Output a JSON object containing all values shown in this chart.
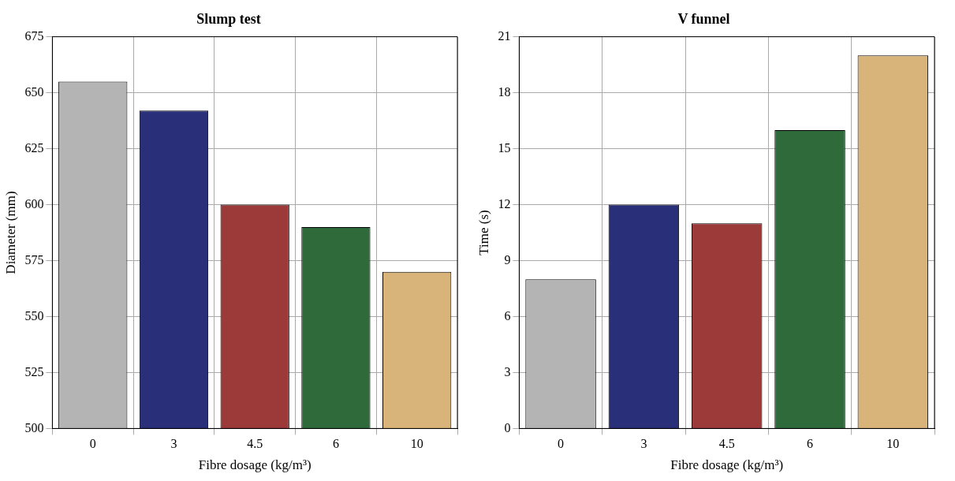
{
  "chart_data": [
    {
      "type": "bar",
      "title": "Slump test",
      "xlabel": "Fibre dosage (kg/m³)",
      "ylabel": "Diameter (mm)",
      "categories": [
        "0",
        "3",
        "4.5",
        "6",
        "10"
      ],
      "values": [
        655,
        642,
        600,
        590,
        570
      ],
      "colors": [
        "#b4b4b4",
        "#2a2f7a",
        "#9c3a3a",
        "#2f6a3a",
        "#d8b47a"
      ],
      "ylim": [
        500,
        675
      ],
      "yticks": [
        500,
        525,
        550,
        575,
        600,
        625,
        650,
        675
      ],
      "grid": true
    },
    {
      "type": "bar",
      "title": "V funnel",
      "xlabel": "Fibre dosage (kg/m³)",
      "ylabel": "Time (s)",
      "categories": [
        "0",
        "3",
        "4.5",
        "6",
        "10"
      ],
      "values": [
        8,
        12,
        11,
        16,
        20
      ],
      "colors": [
        "#b4b4b4",
        "#2a2f7a",
        "#9c3a3a",
        "#2f6a3a",
        "#d8b47a"
      ],
      "ylim": [
        0,
        21
      ],
      "yticks": [
        0,
        3,
        6,
        9,
        12,
        15,
        18,
        21
      ],
      "grid": true
    }
  ]
}
